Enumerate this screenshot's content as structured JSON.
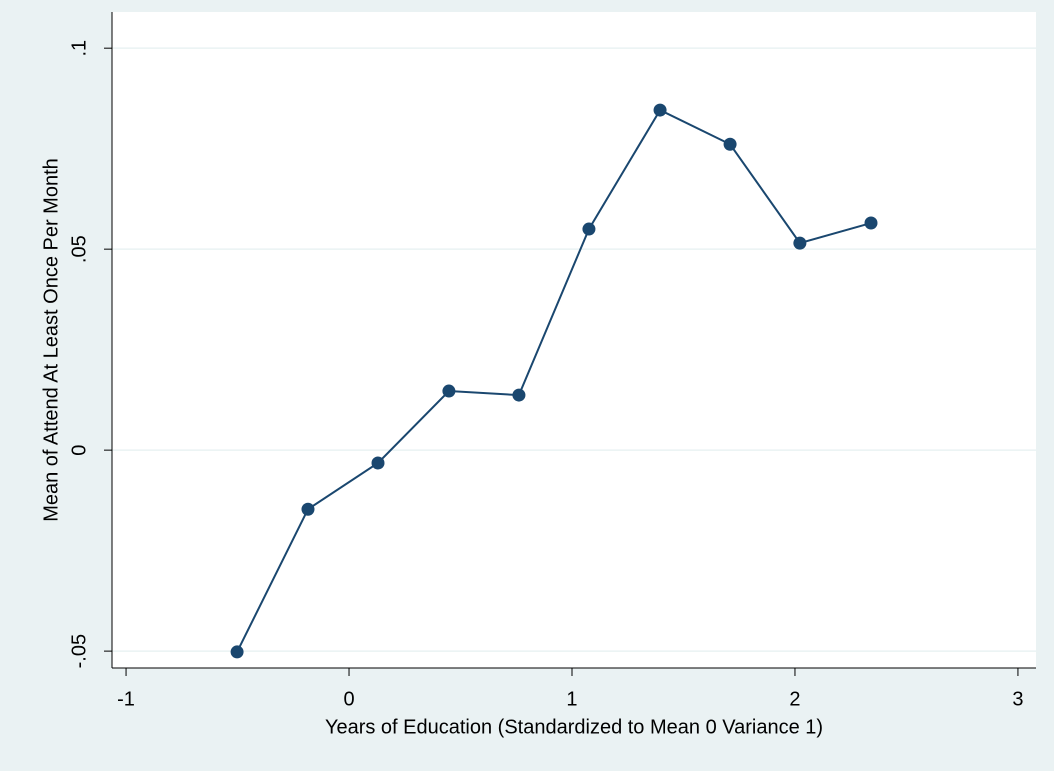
{
  "chart_data": {
    "type": "line",
    "x_label": "Years of Education (Standardized to Mean 0 Variance 1)",
    "y_label": "Mean of Attend At Least Once Per Month",
    "x": [
      -0.502,
      -0.184,
      0.13,
      0.448,
      0.762,
      1.076,
      1.395,
      1.709,
      2.022,
      2.341
    ],
    "series": [
      {
        "color": "#1a476f",
        "values": [
          -0.0502,
          -0.0147,
          -0.0032,
          0.0147,
          0.0137,
          0.055,
          0.0846,
          0.0761,
          0.0515,
          0.0565
        ]
      }
    ],
    "xlim": [
      -1.063,
      3.081
    ],
    "xticks": [
      -1,
      0,
      1,
      2,
      3
    ],
    "ylim": [
      -0.0542,
      0.109
    ],
    "yticks": [
      {
        "value": -0.05,
        "label": "-.05"
      },
      0,
      {
        "value": 0.05,
        "label": ".05"
      },
      {
        "value": 0.1,
        "label": ".1"
      }
    ],
    "grid": true
  }
}
